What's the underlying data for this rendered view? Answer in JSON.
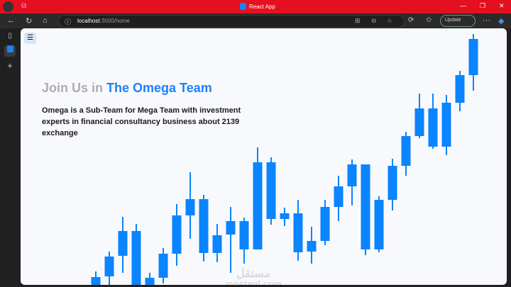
{
  "browser": {
    "tab_title": "React App",
    "url_host": "localhost",
    "url_path": ":3000/home",
    "update_label": "Update",
    "colors": {
      "titlebar": "#e5101f",
      "toolbar": "#2b2b2b"
    }
  },
  "page": {
    "menu_icon": "hamburger-icon",
    "heading_prefix": "Join Us in",
    "heading_highlight": "The Omega Team",
    "description": "Omega is a Sub-Team for Mega Team with investment experts in financial consultancy business about 2139 exchange",
    "watermark_arabic": "مستقل",
    "watermark_latin": "mostaql.com",
    "accent": "#1a82f7"
  },
  "chart_data": {
    "type": "candlestick",
    "color": "#0a84ff",
    "axes_visible": false,
    "ylim": [
      0,
      360
    ],
    "candles": [
      {
        "open": 0,
        "close": 14,
        "high": 22,
        "low": 0
      },
      {
        "open": 15,
        "close": 43,
        "high": 50,
        "low": 2
      },
      {
        "open": 44,
        "close": 79,
        "high": 99,
        "low": 20
      },
      {
        "open": 79,
        "close": 0,
        "high": 89,
        "low": 0
      },
      {
        "open": 0,
        "close": 13,
        "high": 20,
        "low": 0
      },
      {
        "open": 13,
        "close": 47,
        "high": 55,
        "low": 5
      },
      {
        "open": 47,
        "close": 101,
        "high": 117,
        "low": 30
      },
      {
        "open": 101,
        "close": 124,
        "high": 162,
        "low": 68
      },
      {
        "open": 124,
        "close": 48,
        "high": 130,
        "low": 36
      },
      {
        "open": 48,
        "close": 73,
        "high": 89,
        "low": 35
      },
      {
        "open": 74,
        "close": 93,
        "high": 113,
        "low": 20
      },
      {
        "open": 93,
        "close": 53,
        "high": 98,
        "low": 33
      },
      {
        "open": 53,
        "close": 176,
        "high": 197,
        "low": 53
      },
      {
        "open": 176,
        "close": 96,
        "high": 183,
        "low": 88
      },
      {
        "open": 96,
        "close": 104,
        "high": 112,
        "low": 86
      },
      {
        "open": 104,
        "close": 49,
        "high": 123,
        "low": 37
      },
      {
        "open": 50,
        "close": 65,
        "high": 85,
        "low": 33
      },
      {
        "open": 65,
        "close": 113,
        "high": 123,
        "low": 59
      },
      {
        "open": 113,
        "close": 142,
        "high": 157,
        "low": 93
      },
      {
        "open": 142,
        "close": 173,
        "high": 180,
        "low": 115
      },
      {
        "open": 173,
        "close": 53,
        "high": 173,
        "low": 45
      },
      {
        "open": 53,
        "close": 123,
        "high": 128,
        "low": 49
      },
      {
        "open": 123,
        "close": 171,
        "high": 181,
        "low": 108
      },
      {
        "open": 171,
        "close": 213,
        "high": 219,
        "low": 157
      },
      {
        "open": 213,
        "close": 252,
        "high": 273,
        "low": 210
      },
      {
        "open": 252,
        "close": 198,
        "high": 273,
        "low": 195
      },
      {
        "open": 198,
        "close": 260,
        "high": 271,
        "low": 186
      },
      {
        "open": 260,
        "close": 299,
        "high": 305,
        "low": 248
      },
      {
        "open": 299,
        "close": 350,
        "high": 357,
        "low": 277
      }
    ]
  }
}
